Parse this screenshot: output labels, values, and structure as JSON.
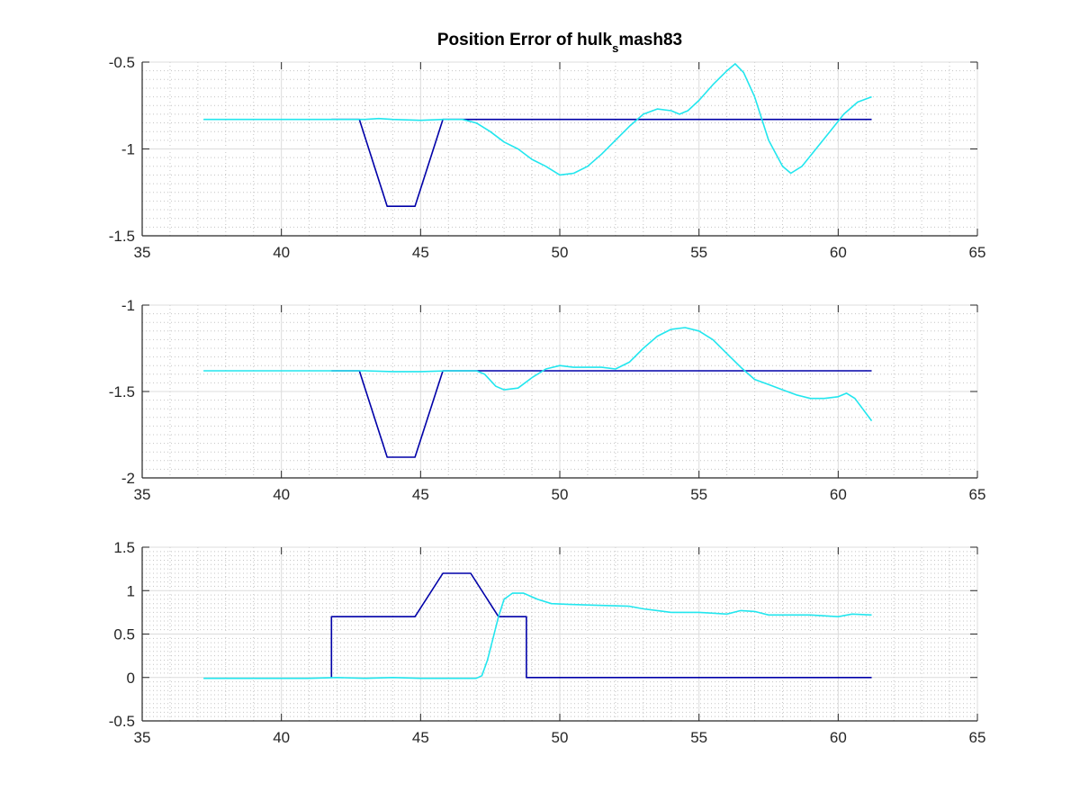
{
  "title": {
    "prefix": "Position Error of hulk",
    "subscript": "s",
    "suffix": "mash83"
  },
  "colors": {
    "reference": "#0000a8",
    "actual": "#22e6ee",
    "grid_major": "#dcdcdc",
    "grid_minor": "#c4c4c4",
    "axis": "#262626"
  },
  "chart_data": [
    {
      "type": "line",
      "xlim": [
        35,
        65
      ],
      "ylim": [
        -1.5,
        -0.5
      ],
      "y_reversed": true,
      "x_ticks": [
        35,
        40,
        45,
        50,
        55,
        60,
        65
      ],
      "y_ticks": [
        -0.5,
        -1,
        -1.5
      ],
      "grid": "major and minor",
      "series": [
        {
          "color_key": "reference",
          "points": [
            [
              41.8,
              -0.83
            ],
            [
              42.8,
              -0.83
            ],
            [
              43.8,
              -1.33
            ],
            [
              44.8,
              -1.33
            ],
            [
              45.8,
              -0.83
            ],
            [
              61.2,
              -0.83
            ]
          ]
        },
        {
          "color_key": "actual",
          "points": [
            [
              37.2,
              -0.83
            ],
            [
              43.0,
              -0.83
            ],
            [
              43.5,
              -0.825
            ],
            [
              44.0,
              -0.83
            ],
            [
              45.0,
              -0.835
            ],
            [
              45.8,
              -0.83
            ],
            [
              46.5,
              -0.83
            ],
            [
              47.0,
              -0.85
            ],
            [
              47.5,
              -0.9
            ],
            [
              48.0,
              -0.96
            ],
            [
              48.5,
              -1.0
            ],
            [
              49.0,
              -1.06
            ],
            [
              49.5,
              -1.1
            ],
            [
              50.0,
              -1.15
            ],
            [
              50.5,
              -1.14
            ],
            [
              51.0,
              -1.1
            ],
            [
              51.5,
              -1.03
            ],
            [
              52.0,
              -0.95
            ],
            [
              52.5,
              -0.87
            ],
            [
              53.0,
              -0.8
            ],
            [
              53.5,
              -0.77
            ],
            [
              54.0,
              -0.78
            ],
            [
              54.3,
              -0.8
            ],
            [
              54.6,
              -0.78
            ],
            [
              55.0,
              -0.72
            ],
            [
              55.5,
              -0.63
            ],
            [
              56.0,
              -0.55
            ],
            [
              56.3,
              -0.51
            ],
            [
              56.6,
              -0.56
            ],
            [
              57.0,
              -0.7
            ],
            [
              57.5,
              -0.95
            ],
            [
              58.0,
              -1.1
            ],
            [
              58.3,
              -1.14
            ],
            [
              58.7,
              -1.1
            ],
            [
              59.2,
              -1.0
            ],
            [
              59.7,
              -0.9
            ],
            [
              60.2,
              -0.8
            ],
            [
              60.7,
              -0.73
            ],
            [
              61.2,
              -0.7
            ]
          ]
        }
      ]
    },
    {
      "type": "line",
      "xlim": [
        35,
        65
      ],
      "ylim": [
        -2,
        -1
      ],
      "y_reversed": true,
      "x_ticks": [
        35,
        40,
        45,
        50,
        55,
        60,
        65
      ],
      "y_ticks": [
        -1,
        -1.5,
        -2
      ],
      "grid": "major and minor",
      "series": [
        {
          "color_key": "reference",
          "points": [
            [
              41.8,
              -1.38
            ],
            [
              42.8,
              -1.38
            ],
            [
              43.8,
              -1.88
            ],
            [
              44.8,
              -1.88
            ],
            [
              45.8,
              -1.38
            ],
            [
              61.2,
              -1.38
            ]
          ]
        },
        {
          "color_key": "actual",
          "points": [
            [
              37.2,
              -1.38
            ],
            [
              43.0,
              -1.38
            ],
            [
              44.0,
              -1.385
            ],
            [
              45.0,
              -1.385
            ],
            [
              46.0,
              -1.38
            ],
            [
              47.0,
              -1.38
            ],
            [
              47.3,
              -1.4
            ],
            [
              47.7,
              -1.47
            ],
            [
              48.0,
              -1.49
            ],
            [
              48.5,
              -1.48
            ],
            [
              49.0,
              -1.42
            ],
            [
              49.5,
              -1.37
            ],
            [
              50.0,
              -1.35
            ],
            [
              50.5,
              -1.36
            ],
            [
              51.0,
              -1.36
            ],
            [
              51.5,
              -1.36
            ],
            [
              52.0,
              -1.37
            ],
            [
              52.5,
              -1.33
            ],
            [
              53.0,
              -1.25
            ],
            [
              53.5,
              -1.18
            ],
            [
              54.0,
              -1.14
            ],
            [
              54.5,
              -1.13
            ],
            [
              55.0,
              -1.15
            ],
            [
              55.5,
              -1.2
            ],
            [
              56.0,
              -1.28
            ],
            [
              56.5,
              -1.36
            ],
            [
              57.0,
              -1.43
            ],
            [
              57.5,
              -1.46
            ],
            [
              58.0,
              -1.49
            ],
            [
              58.5,
              -1.52
            ],
            [
              59.0,
              -1.54
            ],
            [
              59.5,
              -1.54
            ],
            [
              60.0,
              -1.53
            ],
            [
              60.3,
              -1.51
            ],
            [
              60.6,
              -1.54
            ],
            [
              61.2,
              -1.67
            ]
          ]
        }
      ]
    },
    {
      "type": "line",
      "xlim": [
        35,
        65
      ],
      "ylim": [
        -0.5,
        1.5
      ],
      "y_reversed": false,
      "x_ticks": [
        35,
        40,
        45,
        50,
        55,
        60,
        65
      ],
      "y_ticks": [
        1.5,
        1,
        0.5,
        0,
        -0.5
      ],
      "grid": "major and minor",
      "series": [
        {
          "color_key": "reference",
          "points": [
            [
              41.8,
              0
            ],
            [
              41.8,
              0.7
            ],
            [
              44.8,
              0.7
            ],
            [
              45.8,
              1.2
            ],
            [
              46.8,
              1.2
            ],
            [
              47.8,
              0.7
            ],
            [
              48.8,
              0.7
            ],
            [
              48.8,
              0
            ],
            [
              61.2,
              0
            ]
          ]
        },
        {
          "color_key": "actual",
          "points": [
            [
              37.2,
              -0.01
            ],
            [
              41.0,
              -0.01
            ],
            [
              42.0,
              0.0
            ],
            [
              43.0,
              -0.01
            ],
            [
              44.0,
              0.0
            ],
            [
              45.0,
              -0.01
            ],
            [
              46.0,
              -0.01
            ],
            [
              47.0,
              -0.01
            ],
            [
              47.2,
              0.02
            ],
            [
              47.4,
              0.2
            ],
            [
              47.6,
              0.45
            ],
            [
              47.8,
              0.7
            ],
            [
              48.0,
              0.9
            ],
            [
              48.3,
              0.97
            ],
            [
              48.7,
              0.97
            ],
            [
              49.2,
              0.9
            ],
            [
              49.7,
              0.85
            ],
            [
              50.5,
              0.84
            ],
            [
              51.5,
              0.83
            ],
            [
              52.5,
              0.82
            ],
            [
              53.0,
              0.79
            ],
            [
              53.5,
              0.77
            ],
            [
              54.0,
              0.75
            ],
            [
              55.0,
              0.75
            ],
            [
              55.5,
              0.74
            ],
            [
              56.0,
              0.73
            ],
            [
              56.5,
              0.77
            ],
            [
              57.0,
              0.76
            ],
            [
              57.5,
              0.72
            ],
            [
              58.0,
              0.72
            ],
            [
              59.0,
              0.72
            ],
            [
              60.0,
              0.7
            ],
            [
              60.5,
              0.73
            ],
            [
              61.2,
              0.72
            ]
          ]
        }
      ]
    }
  ]
}
